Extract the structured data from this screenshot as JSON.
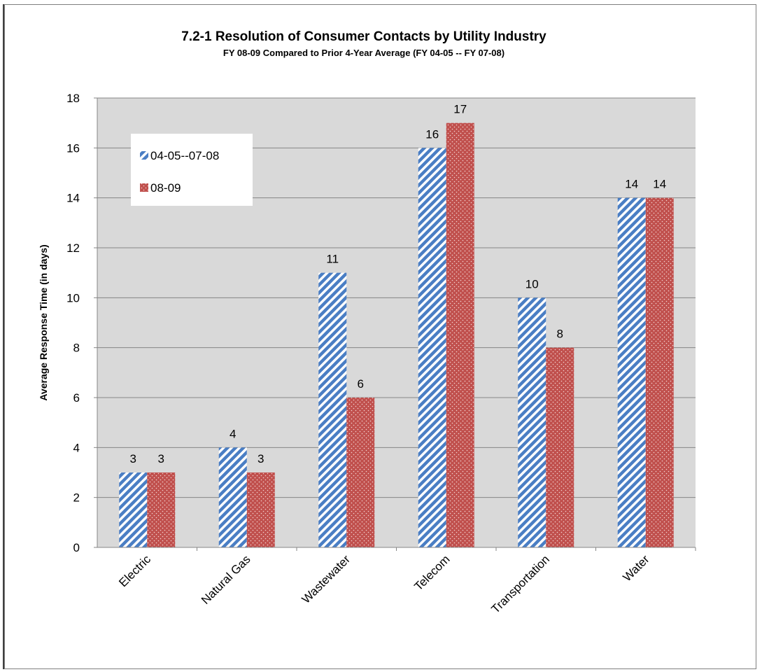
{
  "chart_data": {
    "type": "bar",
    "title": "7.2-1  Resolution of Consumer Contacts by Utility Industry",
    "subtitle": "FY 08-09 Compared to Prior 4-Year Average (FY 04-05 -- FY 07-08)",
    "xlabel": "",
    "ylabel": "Average Response Time (in days)",
    "ylim": [
      0,
      18
    ],
    "yticks": [
      0,
      2,
      4,
      6,
      8,
      10,
      12,
      14,
      16,
      18
    ],
    "grid": true,
    "legend_position": "top-left",
    "categories": [
      "Electric",
      "Natural Gas",
      "Wastewater",
      "Telecom",
      "Transportation",
      "Water"
    ],
    "series": [
      {
        "name": "04-05--07-08",
        "values": [
          3,
          4,
          11,
          16,
          10,
          14
        ],
        "color": "#4a7ec4",
        "pattern": "diagonal-stripes"
      },
      {
        "name": "08-09",
        "values": [
          3,
          3,
          6,
          17,
          8,
          14
        ],
        "color": "#c0504d",
        "pattern": "dots"
      }
    ],
    "plot_background": "#d9d9d9"
  }
}
